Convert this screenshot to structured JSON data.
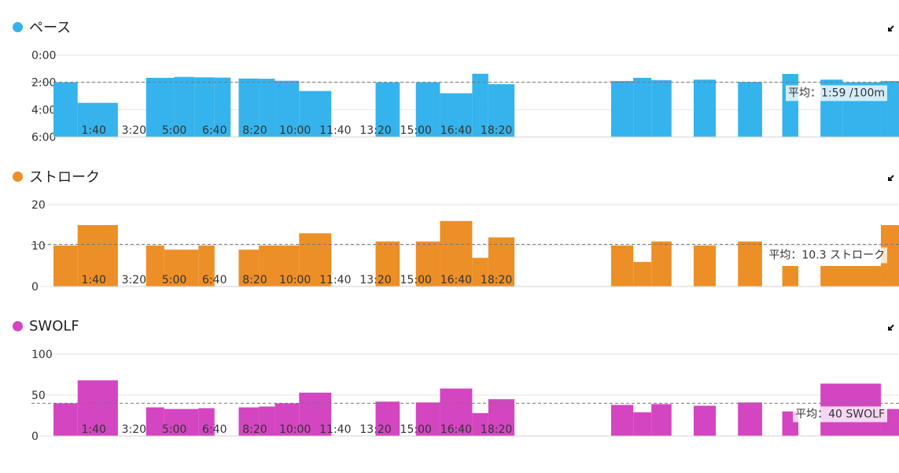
{
  "x_ticks": [
    "1:40",
    "3:20",
    "5:00",
    "6:40",
    "8:20",
    "10:00",
    "11:40",
    "13:20",
    "15:00",
    "16:40",
    "18:20"
  ],
  "chart_data": [
    {
      "type": "bar",
      "title": "ペース",
      "color": "#35b3ec",
      "inverted": true,
      "y_ticks": [
        "0:00",
        "2:00",
        "4:00",
        "6:00"
      ],
      "ylim": [
        0,
        360
      ],
      "average": {
        "label": "平均：1:59 /100m",
        "value": 119
      },
      "bars": [
        {
          "start": 0,
          "end": 60,
          "value": 120
        },
        {
          "start": 60,
          "end": 160,
          "value": 210
        },
        {
          "start": 230,
          "end": 300,
          "value": 100
        },
        {
          "start": 300,
          "end": 350,
          "value": 96
        },
        {
          "start": 350,
          "end": 400,
          "value": 98
        },
        {
          "start": 400,
          "end": 440,
          "value": 99
        },
        {
          "start": 460,
          "end": 510,
          "value": 103
        },
        {
          "start": 510,
          "end": 550,
          "value": 104
        },
        {
          "start": 550,
          "end": 610,
          "value": 113
        },
        {
          "start": 610,
          "end": 690,
          "value": 158
        },
        {
          "start": 800,
          "end": 860,
          "value": 120
        },
        {
          "start": 900,
          "end": 960,
          "value": 120
        },
        {
          "start": 960,
          "end": 1040,
          "value": 168
        },
        {
          "start": 1040,
          "end": 1080,
          "value": 82
        },
        {
          "start": 1080,
          "end": 1145,
          "value": 128
        },
        {
          "start": 1385,
          "end": 1440,
          "value": 114
        },
        {
          "start": 1440,
          "end": 1485,
          "value": 100
        },
        {
          "start": 1485,
          "end": 1535,
          "value": 110
        },
        {
          "start": 1590,
          "end": 1645,
          "value": 108
        },
        {
          "start": 1700,
          "end": 1760,
          "value": 118
        },
        {
          "start": 1810,
          "end": 1850,
          "value": 83
        },
        {
          "start": 1905,
          "end": 1960,
          "value": 108
        },
        {
          "start": 1960,
          "end": 2055,
          "value": 120
        },
        {
          "start": 2055,
          "end": 2100,
          "value": 114
        }
      ]
    },
    {
      "type": "bar",
      "title": "ストローク",
      "color": "#ec8f27",
      "inverted": false,
      "y_ticks": [
        "20",
        "10",
        "0"
      ],
      "ylim": [
        0,
        20
      ],
      "average": {
        "label": "平均：10.3 ストローク",
        "value": 10.3
      },
      "bars": [
        {
          "start": 0,
          "end": 60,
          "value": 10
        },
        {
          "start": 60,
          "end": 160,
          "value": 15
        },
        {
          "start": 230,
          "end": 275,
          "value": 10
        },
        {
          "start": 275,
          "end": 360,
          "value": 9
        },
        {
          "start": 360,
          "end": 400,
          "value": 10
        },
        {
          "start": 460,
          "end": 510,
          "value": 9
        },
        {
          "start": 510,
          "end": 610,
          "value": 10
        },
        {
          "start": 610,
          "end": 690,
          "value": 13
        },
        {
          "start": 800,
          "end": 860,
          "value": 11
        },
        {
          "start": 900,
          "end": 960,
          "value": 11
        },
        {
          "start": 960,
          "end": 1040,
          "value": 16
        },
        {
          "start": 1040,
          "end": 1080,
          "value": 7
        },
        {
          "start": 1080,
          "end": 1145,
          "value": 12
        },
        {
          "start": 1385,
          "end": 1440,
          "value": 10
        },
        {
          "start": 1440,
          "end": 1485,
          "value": 6
        },
        {
          "start": 1485,
          "end": 1535,
          "value": 11
        },
        {
          "start": 1590,
          "end": 1645,
          "value": 10
        },
        {
          "start": 1700,
          "end": 1760,
          "value": 11
        },
        {
          "start": 1810,
          "end": 1850,
          "value": 5
        },
        {
          "start": 1905,
          "end": 2055,
          "value": 5
        },
        {
          "start": 2055,
          "end": 2100,
          "value": 15
        }
      ]
    },
    {
      "type": "bar",
      "title": "SWOLF",
      "color": "#d445c2",
      "inverted": false,
      "y_ticks": [
        "100",
        "50",
        "0"
      ],
      "ylim": [
        0,
        100
      ],
      "average": {
        "label": "平均：40 SWOLF",
        "value": 40
      },
      "bars": [
        {
          "start": 0,
          "end": 60,
          "value": 40
        },
        {
          "start": 60,
          "end": 160,
          "value": 68
        },
        {
          "start": 230,
          "end": 275,
          "value": 35
        },
        {
          "start": 275,
          "end": 360,
          "value": 33
        },
        {
          "start": 360,
          "end": 400,
          "value": 34
        },
        {
          "start": 460,
          "end": 510,
          "value": 35
        },
        {
          "start": 510,
          "end": 550,
          "value": 36
        },
        {
          "start": 550,
          "end": 610,
          "value": 40
        },
        {
          "start": 610,
          "end": 690,
          "value": 53
        },
        {
          "start": 800,
          "end": 860,
          "value": 42
        },
        {
          "start": 900,
          "end": 960,
          "value": 41
        },
        {
          "start": 960,
          "end": 1040,
          "value": 58
        },
        {
          "start": 1040,
          "end": 1080,
          "value": 28
        },
        {
          "start": 1080,
          "end": 1145,
          "value": 45
        },
        {
          "start": 1385,
          "end": 1440,
          "value": 38
        },
        {
          "start": 1440,
          "end": 1485,
          "value": 29
        },
        {
          "start": 1485,
          "end": 1535,
          "value": 39
        },
        {
          "start": 1590,
          "end": 1645,
          "value": 37
        },
        {
          "start": 1700,
          "end": 1760,
          "value": 41
        },
        {
          "start": 1810,
          "end": 1850,
          "value": 30
        },
        {
          "start": 1905,
          "end": 2055,
          "value": 64
        },
        {
          "start": 2055,
          "end": 2100,
          "value": 33
        }
      ]
    }
  ]
}
